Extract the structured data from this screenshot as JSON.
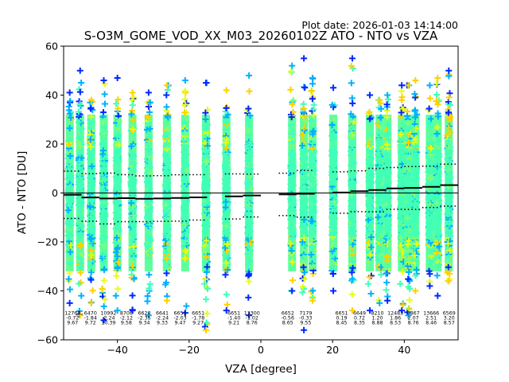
{
  "plot_date": "Plot date: 2026-01-03 14:14:00",
  "chart_data": {
    "type": "scatter",
    "title": "S-O3M_GOME_VOD_XX_M03_20260102Z ATO - NTO vs VZA",
    "xlabel": "VZA [degree]",
    "ylabel": "ATO - NTO [DU]",
    "xlim": [
      -55,
      55
    ],
    "ylim": [
      -60,
      60
    ],
    "xticks": [
      -40,
      -20,
      0,
      20,
      40
    ],
    "yticks": [
      -60,
      -40,
      -20,
      0,
      20,
      40,
      60
    ],
    "xtick_labels": [
      "−40",
      "−20",
      "0",
      "20",
      "40"
    ],
    "ytick_labels": [
      "−60",
      "−40",
      "−20",
      "0",
      "20",
      "40",
      "60"
    ],
    "marker": "plus",
    "colormap_colors": [
      "#0028ff",
      "#00b0ff",
      "#40ffb8",
      "#7dff7a",
      "#e4ff14",
      "#ffd000",
      "#ff9800"
    ],
    "columns_vza": [
      -53.3,
      -50.4,
      -47.3,
      -43.8,
      -40.0,
      -35.8,
      -31.3,
      -26.2,
      -21.1,
      -15.3,
      -9.6,
      -3.3,
      8.7,
      12.0,
      14.4,
      20.2,
      25.5,
      30.4,
      33.1,
      35.3,
      39.3,
      41.1,
      43.1,
      47.1,
      49.3,
      52.4
    ],
    "column_ranges": [
      [
        -45,
        41
      ],
      [
        -50,
        50
      ],
      [
        -45,
        38
      ],
      [
        -52,
        46
      ],
      [
        -48,
        47
      ],
      [
        -48,
        41
      ],
      [
        -50,
        41
      ],
      [
        -44,
        44
      ],
      [
        -49,
        46
      ],
      [
        -56,
        45
      ],
      [
        -48,
        42
      ],
      [
        -50,
        48
      ],
      [
        -40,
        52
      ],
      [
        -56,
        55
      ],
      [
        -44,
        47
      ],
      [
        -40,
        43
      ],
      [
        -48,
        55
      ],
      [
        -48,
        40
      ],
      [
        -45,
        38
      ],
      [
        -44,
        40
      ],
      [
        -48,
        44
      ],
      [
        -50,
        44
      ],
      [
        -40,
        46
      ],
      [
        -38,
        44
      ],
      [
        -42,
        47
      ],
      [
        -36,
        50
      ]
    ],
    "bins": [
      {
        "vza": -52.5,
        "count": 12768,
        "mean": -0.72,
        "std": 9.67
      },
      {
        "vza": -47.5,
        "count": 6470,
        "mean": -1.84,
        "std": 9.72
      },
      {
        "vza": -42.5,
        "count": 10992,
        "mean": -2.24,
        "std": 10.39
      },
      {
        "vza": -37.5,
        "count": 8706,
        "mean": -2.12,
        "std": 9.58
      },
      {
        "vza": -32.5,
        "count": 6620,
        "mean": -2.35,
        "std": 9.34
      },
      {
        "vza": -27.5,
        "count": 6641,
        "mean": -2.24,
        "std": 9.33
      },
      {
        "vza": -22.5,
        "count": 6651,
        "mean": -2.03,
        "std": 9.47
      },
      {
        "vza": -17.5,
        "count": 6651,
        "mean": -1.78,
        "std": 9.27
      },
      {
        "vza": -7.5,
        "count": 6651,
        "mean": -1.4,
        "std": 9.21
      },
      {
        "vza": -2.5,
        "count": 13300,
        "mean": -1.02,
        "std": 8.76
      },
      {
        "vza": 7.5,
        "count": 6652,
        "mean": -0.56,
        "std": 8.65
      },
      {
        "vza": 12.5,
        "count": 7179,
        "mean": -0.33,
        "std": 9.55
      },
      {
        "vza": 22.5,
        "count": 6651,
        "mean": 0.19,
        "std": 8.45
      },
      {
        "vza": 27.5,
        "count": 6649,
        "mean": 0.72,
        "std": 8.35
      },
      {
        "vza": 32.5,
        "count": 8210,
        "mean": 1.2,
        "std": 8.88
      },
      {
        "vza": 37.5,
        "count": 12483,
        "mean": 1.86,
        "std": 8.53
      },
      {
        "vza": 42.5,
        "count": 6867,
        "mean": 2.07,
        "std": 8.76
      },
      {
        "vza": 47.5,
        "count": 13666,
        "mean": 2.51,
        "std": 8.46
      },
      {
        "vza": 52.5,
        "count": 6569,
        "mean": 3.2,
        "std": 8.57
      }
    ],
    "bin_labels": {
      "count": [
        "12768",
        "6470",
        "10992",
        "8706",
        "6620",
        "6641",
        "6651",
        "6651",
        "6651",
        "13300",
        "6652",
        "7179",
        "6651",
        "6649",
        "8210",
        "12483",
        "6867",
        "13666",
        "6569"
      ],
      "mean": [
        "-0.72",
        "-1.84",
        "-2.24",
        "-2.12",
        "-2.35",
        "-2.24",
        "-2.03",
        "-1.78",
        "-1.40",
        "-1.02",
        "-0.56",
        "-0.33",
        "0.19",
        "0.72",
        "1.20",
        "1.86",
        "2.07",
        "2.51",
        "3.20"
      ],
      "std": [
        "9.67",
        "9.72",
        "10.39",
        "9.58",
        "9.34",
        "9.33",
        "9.47",
        "9.27",
        "9.21",
        "8.76",
        "8.65",
        "9.55",
        "8.45",
        "8.35",
        "8.88",
        "8.53",
        "8.76",
        "8.46",
        "8.57"
      ]
    },
    "zero_line": 0,
    "grid": false,
    "legend": "none"
  }
}
